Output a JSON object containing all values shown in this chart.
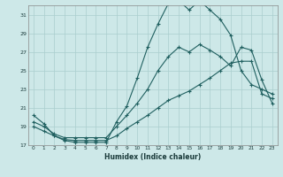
{
  "xlabel": "Humidex (Indice chaleur)",
  "xlim": [
    -0.5,
    23.5
  ],
  "ylim": [
    17,
    32
  ],
  "yticks": [
    17,
    19,
    21,
    23,
    25,
    27,
    29,
    31
  ],
  "xticks": [
    0,
    1,
    2,
    3,
    4,
    5,
    6,
    7,
    8,
    9,
    10,
    11,
    12,
    13,
    14,
    15,
    16,
    17,
    18,
    19,
    20,
    21,
    22,
    23
  ],
  "bg_color": "#cde8e8",
  "grid_color": "#aacece",
  "line_color": "#206060",
  "line1_x": [
    0,
    1,
    2,
    3,
    4,
    5,
    6,
    7,
    8,
    9,
    10,
    11,
    12,
    13,
    14,
    15,
    16,
    17,
    18,
    19,
    20,
    21,
    22,
    23
  ],
  "line1_y": [
    20.2,
    19.3,
    18.0,
    17.5,
    17.3,
    17.3,
    17.3,
    17.3,
    19.5,
    21.2,
    24.2,
    27.5,
    30.0,
    32.2,
    32.5,
    31.5,
    32.5,
    31.5,
    30.5,
    28.8,
    25.0,
    23.5,
    23.0,
    22.5
  ],
  "line2_x": [
    0,
    1,
    2,
    3,
    4,
    5,
    6,
    7,
    8,
    9,
    10,
    11,
    12,
    13,
    14,
    15,
    16,
    17,
    18,
    19,
    20,
    21,
    22,
    23
  ],
  "line2_y": [
    19.5,
    19.0,
    18.2,
    17.8,
    17.8,
    17.8,
    17.8,
    17.8,
    19.0,
    20.2,
    21.5,
    23.0,
    25.0,
    26.5,
    27.5,
    27.0,
    27.8,
    27.2,
    26.5,
    25.5,
    27.5,
    27.2,
    24.0,
    21.5
  ],
  "line3_x": [
    0,
    1,
    2,
    3,
    4,
    5,
    6,
    7,
    8,
    9,
    10,
    11,
    12,
    13,
    14,
    15,
    16,
    17,
    18,
    19,
    20,
    21,
    22,
    23
  ],
  "line3_y": [
    19.0,
    18.5,
    18.0,
    17.6,
    17.5,
    17.5,
    17.5,
    17.5,
    18.0,
    18.8,
    19.5,
    20.2,
    21.0,
    21.8,
    22.3,
    22.8,
    23.5,
    24.2,
    25.0,
    25.8,
    26.0,
    26.0,
    22.5,
    22.0
  ]
}
